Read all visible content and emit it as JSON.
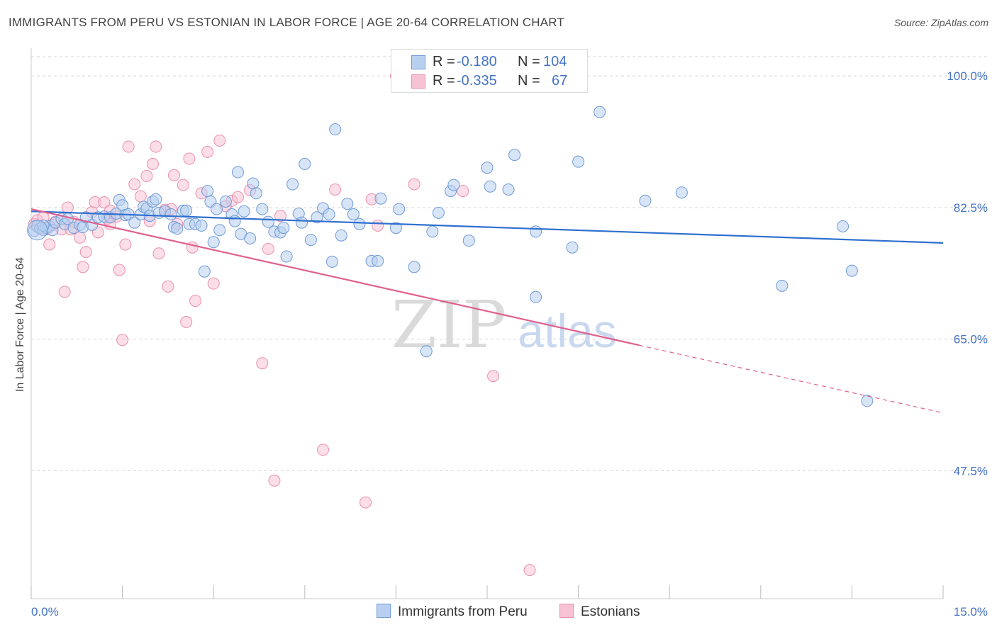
{
  "header": {
    "title": "IMMIGRANTS FROM PERU VS ESTONIAN IN LABOR FORCE | AGE 20-64 CORRELATION CHART",
    "source": "Source: ZipAtlas.com"
  },
  "watermark": {
    "zip": "ZIP",
    "atlas": "atlas"
  },
  "stats": [
    {
      "r_label": "R =",
      "r_value": "-0.180",
      "n_label": "N =",
      "n_value": "104"
    },
    {
      "r_label": "R =",
      "r_value": "-0.335",
      "n_label": "N =",
      "n_value": "67"
    }
  ],
  "legend": {
    "series1": "Immigrants from Peru",
    "series2": "Estonians"
  },
  "colors": {
    "blue_fill": "#b8cff0",
    "blue_stroke": "#6f9ad8",
    "blue_line": "#2f6fcf",
    "pink_fill": "#f7c2d3",
    "pink_stroke": "#ec8fb0",
    "pink_line": "#e0608e",
    "axis_text": "#4472c4",
    "grid": "#d5d5d5"
  },
  "chart_data": {
    "type": "scatter",
    "title": "IMMIGRANTS FROM PERU VS ESTONIAN IN LABOR FORCE | AGE 20-64 CORRELATION CHART",
    "xlabel": "",
    "ylabel": "In Labor Force | Age 20-64",
    "xlim": [
      0,
      15
    ],
    "ylim": [
      30.5,
      103.5
    ],
    "x_tick_labels": [
      "0.0%",
      "15.0%"
    ],
    "y_ticks": [
      100.0,
      82.5,
      65.0,
      47.5
    ],
    "y_tick_labels": [
      "100.0%",
      "82.5%",
      "65.0%",
      "47.5%"
    ],
    "grid": "horizontal dashed",
    "legend_position": "bottom-center",
    "series": [
      {
        "name": "Immigrants from Peru",
        "color": "#6f9ad8",
        "trend": {
          "x": [
            0,
            15
          ],
          "y": [
            82.0,
            77.8
          ],
          "style": "solid"
        },
        "points": [
          [
            0.05,
            79.4
          ],
          [
            0.1,
            80.0
          ],
          [
            0.15,
            79.7
          ],
          [
            0.2,
            79.5
          ],
          [
            0.25,
            79.8
          ],
          [
            0.3,
            80.0
          ],
          [
            0.35,
            79.5
          ],
          [
            0.4,
            80.5
          ],
          [
            0.5,
            81.0
          ],
          [
            0.55,
            80.3
          ],
          [
            0.6,
            81.0
          ],
          [
            0.7,
            79.8
          ],
          [
            0.8,
            80.2
          ],
          [
            0.85,
            79.9
          ],
          [
            0.9,
            81.2
          ],
          [
            1.0,
            80.2
          ],
          [
            1.1,
            81.2
          ],
          [
            1.2,
            81.3
          ],
          [
            1.3,
            81.2
          ],
          [
            1.4,
            81.7
          ],
          [
            1.45,
            83.5
          ],
          [
            1.5,
            82.8
          ],
          [
            1.55,
            81.5
          ],
          [
            1.6,
            81.6
          ],
          [
            1.7,
            80.5
          ],
          [
            1.8,
            81.6
          ],
          [
            1.85,
            82.6
          ],
          [
            1.9,
            82.4
          ],
          [
            1.95,
            81.4
          ],
          [
            2.0,
            83.3
          ],
          [
            2.05,
            83.6
          ],
          [
            2.1,
            81.8
          ],
          [
            2.2,
            82.0
          ],
          [
            2.3,
            81.6
          ],
          [
            2.35,
            79.9
          ],
          [
            2.4,
            79.7
          ],
          [
            2.5,
            82.1
          ],
          [
            2.55,
            82.1
          ],
          [
            2.6,
            80.3
          ],
          [
            2.7,
            80.3
          ],
          [
            2.8,
            80.1
          ],
          [
            2.85,
            74.0
          ],
          [
            2.9,
            84.7
          ],
          [
            2.95,
            83.3
          ],
          [
            3.0,
            77.9
          ],
          [
            3.05,
            82.3
          ],
          [
            3.1,
            79.5
          ],
          [
            3.2,
            83.3
          ],
          [
            3.3,
            81.6
          ],
          [
            3.35,
            80.7
          ],
          [
            3.4,
            87.2
          ],
          [
            3.45,
            79.0
          ],
          [
            3.5,
            82.0
          ],
          [
            3.6,
            78.4
          ],
          [
            3.65,
            85.7
          ],
          [
            3.7,
            84.4
          ],
          [
            3.8,
            82.3
          ],
          [
            3.9,
            80.6
          ],
          [
            4.0,
            79.3
          ],
          [
            4.1,
            79.2
          ],
          [
            4.15,
            79.8
          ],
          [
            4.2,
            76.0
          ],
          [
            4.3,
            85.6
          ],
          [
            4.4,
            81.7
          ],
          [
            4.45,
            80.5
          ],
          [
            4.5,
            88.3
          ],
          [
            4.6,
            78.2
          ],
          [
            4.7,
            81.2
          ],
          [
            4.8,
            82.4
          ],
          [
            4.9,
            81.6
          ],
          [
            4.95,
            75.3
          ],
          [
            5.0,
            92.9
          ],
          [
            5.1,
            78.8
          ],
          [
            5.2,
            83.0
          ],
          [
            5.3,
            81.6
          ],
          [
            5.4,
            80.3
          ],
          [
            5.6,
            75.4
          ],
          [
            5.7,
            75.4
          ],
          [
            5.75,
            83.7
          ],
          [
            6.0,
            79.8
          ],
          [
            6.05,
            82.3
          ],
          [
            6.3,
            74.6
          ],
          [
            6.6,
            79.3
          ],
          [
            6.7,
            81.8
          ],
          [
            6.9,
            84.7
          ],
          [
            6.95,
            85.5
          ],
          [
            7.2,
            78.1
          ],
          [
            7.5,
            87.8
          ],
          [
            7.55,
            85.3
          ],
          [
            7.85,
            84.9
          ],
          [
            7.95,
            89.5
          ],
          [
            8.3,
            70.6
          ],
          [
            8.3,
            79.3
          ],
          [
            8.9,
            77.2
          ],
          [
            9.0,
            88.6
          ],
          [
            9.35,
            95.2
          ],
          [
            10.1,
            83.4
          ],
          [
            10.7,
            84.5
          ],
          [
            12.35,
            72.1
          ],
          [
            13.35,
            80.0
          ],
          [
            13.5,
            74.1
          ],
          [
            13.75,
            56.8
          ],
          [
            6.5,
            63.4
          ],
          [
            0.2,
            80.1
          ]
        ]
      },
      {
        "name": "Estonians",
        "color": "#ec8fb0",
        "trend": {
          "x": [
            0,
            10.0
          ],
          "y": [
            82.3,
            64.2
          ],
          "style": "solid",
          "extension": {
            "x": [
              10.0,
              15
            ],
            "y": [
              64.2,
              55.2
            ],
            "style": "dashed"
          }
        },
        "points": [
          [
            0.05,
            80.3
          ],
          [
            0.1,
            80.8
          ],
          [
            0.15,
            79.8
          ],
          [
            0.2,
            81.2
          ],
          [
            0.25,
            79.6
          ],
          [
            0.3,
            77.6
          ],
          [
            0.35,
            80.2
          ],
          [
            0.4,
            80.6
          ],
          [
            0.5,
            79.6
          ],
          [
            0.55,
            71.3
          ],
          [
            0.6,
            82.5
          ],
          [
            0.65,
            79.6
          ],
          [
            0.7,
            80.6
          ],
          [
            0.8,
            78.5
          ],
          [
            0.85,
            74.6
          ],
          [
            0.9,
            76.6
          ],
          [
            1.0,
            81.9
          ],
          [
            1.05,
            83.2
          ],
          [
            1.1,
            79.2
          ],
          [
            1.2,
            83.2
          ],
          [
            1.25,
            81.0
          ],
          [
            1.3,
            82.1
          ],
          [
            1.4,
            81.3
          ],
          [
            1.45,
            74.2
          ],
          [
            1.5,
            64.9
          ],
          [
            1.55,
            77.6
          ],
          [
            1.6,
            90.6
          ],
          [
            1.7,
            85.6
          ],
          [
            1.8,
            84.0
          ],
          [
            1.9,
            86.7
          ],
          [
            1.95,
            80.7
          ],
          [
            2.0,
            88.3
          ],
          [
            2.05,
            90.6
          ],
          [
            2.1,
            76.4
          ],
          [
            2.2,
            82.2
          ],
          [
            2.25,
            72.0
          ],
          [
            2.3,
            82.3
          ],
          [
            2.35,
            86.8
          ],
          [
            2.4,
            80.3
          ],
          [
            2.5,
            85.5
          ],
          [
            2.55,
            67.3
          ],
          [
            2.6,
            89.0
          ],
          [
            2.65,
            77.2
          ],
          [
            2.7,
            70.1
          ],
          [
            2.8,
            84.4
          ],
          [
            2.9,
            89.9
          ],
          [
            3.0,
            72.4
          ],
          [
            3.1,
            91.4
          ],
          [
            3.2,
            82.7
          ],
          [
            3.3,
            83.4
          ],
          [
            3.4,
            83.9
          ],
          [
            3.6,
            84.8
          ],
          [
            3.8,
            61.8
          ],
          [
            3.9,
            77.0
          ],
          [
            4.0,
            46.2
          ],
          [
            4.1,
            81.4
          ],
          [
            4.8,
            50.3
          ],
          [
            5.0,
            84.9
          ],
          [
            5.5,
            43.3
          ],
          [
            5.6,
            83.6
          ],
          [
            5.7,
            80.1
          ],
          [
            6.0,
            100.0
          ],
          [
            6.3,
            85.6
          ],
          [
            7.1,
            84.7
          ],
          [
            7.6,
            60.1
          ],
          [
            8.2,
            34.3
          ],
          [
            1.3,
            80.3
          ]
        ]
      }
    ]
  }
}
